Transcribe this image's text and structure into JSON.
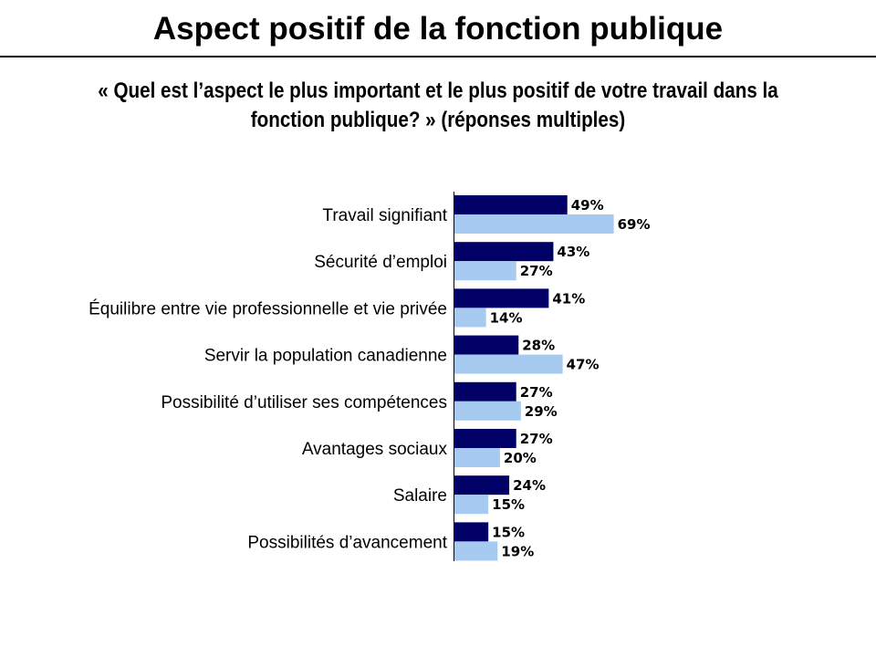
{
  "slide": {
    "title": "Aspect positif de la fonction publique",
    "subtitle": "« Quel est l’aspect le plus important et le plus positif de votre travail dans la fonction publique? » (réponses multiples)"
  },
  "colors": {
    "series_dark": "#000066",
    "series_light": "#A6CAF0"
  },
  "chart_data": {
    "type": "bar",
    "orientation": "horizontal",
    "categories": [
      "Travail signifiant",
      "Sécurité d’emploi",
      "Équilibre entre vie professionnelle et vie privée",
      "Servir la population canadienne",
      "Possibilité d’utiliser ses compétences",
      "Avantages sociaux",
      "Salaire",
      "Possibilités d’avancement"
    ],
    "series": [
      {
        "values": [
          49,
          43,
          41,
          28,
          27,
          27,
          24,
          15
        ],
        "color": "#000066"
      },
      {
        "values": [
          69,
          27,
          14,
          47,
          29,
          20,
          15,
          19
        ],
        "color": "#A6CAF0"
      }
    ],
    "value_suffix": "%",
    "xlim": [
      0,
      100
    ],
    "xlabel": "",
    "ylabel": "",
    "grid": false,
    "legend": "none"
  }
}
